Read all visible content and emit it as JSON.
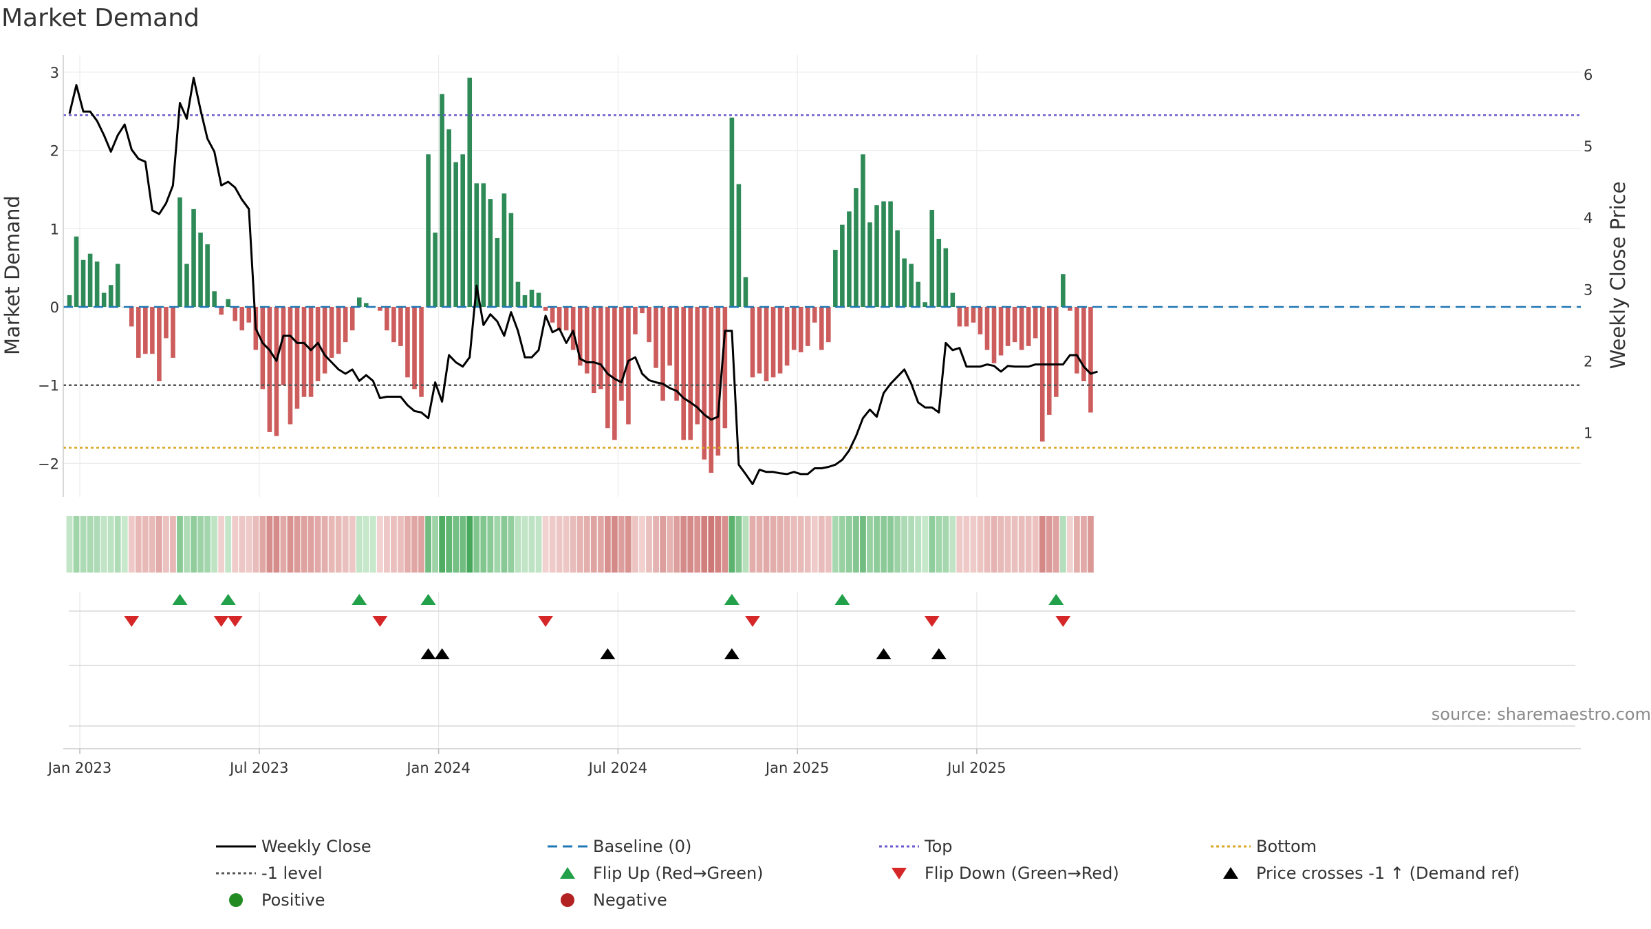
{
  "title": "Market Demand",
  "source_note": "source: sharemaestro.com",
  "colors": {
    "positive": "#2e8b57",
    "negative": "#cd5c5c",
    "price_line": "#000000",
    "baseline": "#1f77b4",
    "top": "#6a5acd",
    "bottom": "#daa520",
    "minus1": "#555555",
    "flip_up": "#22a04a",
    "flip_down": "#d62728",
    "legend_positive": "#228b22",
    "legend_negative": "#b22222"
  },
  "chart_data": {
    "type": "bar",
    "title": "Market Demand",
    "ylabel": "Market Demand",
    "y2label": "Weekly Close Price",
    "ylim": [
      -2.4,
      3.1
    ],
    "y2lim": [
      0.2,
      6.2
    ],
    "yticks": [
      3,
      2,
      1,
      0,
      -1,
      -2
    ],
    "ytick_labels": [
      "3",
      "2",
      "1",
      "0",
      "−1",
      "−2"
    ],
    "y2ticks": [
      6,
      5,
      4,
      3,
      2,
      1
    ],
    "y2tick_labels": [
      "6",
      "5",
      "4",
      "3",
      "2",
      "1"
    ],
    "xtick_labels": [
      "Jan 2023",
      "Jul 2023",
      "Jan 2024",
      "Jul 2024",
      "Jan 2025",
      "Jul 2025"
    ],
    "xtick_weeks": [
      1.5,
      27.5,
      53.5,
      79.5,
      105.5,
      131.5
    ],
    "reference_lines": {
      "top": 2.45,
      "bottom": -1.8,
      "minus_one": -1,
      "baseline": 0
    },
    "demand_weekly": [
      0.15,
      0.9,
      0.6,
      0.68,
      0.58,
      0.18,
      0.28,
      0.55,
      0.0,
      -0.25,
      -0.65,
      -0.6,
      -0.6,
      -0.95,
      -0.4,
      -0.65,
      1.4,
      0.55,
      1.25,
      0.95,
      0.8,
      0.2,
      -0.1,
      0.1,
      -0.18,
      -0.3,
      -0.2,
      -0.55,
      -1.05,
      -1.6,
      -1.65,
      -1.0,
      -1.5,
      -1.3,
      -1.15,
      -1.15,
      -0.95,
      -0.85,
      -0.65,
      -0.6,
      -0.45,
      -0.3,
      0.12,
      0.05,
      0.0,
      -0.05,
      -0.3,
      -0.45,
      -0.5,
      -0.9,
      -1.05,
      -1.15,
      1.95,
      0.95,
      2.72,
      2.27,
      1.85,
      1.95,
      2.93,
      1.58,
      1.58,
      1.38,
      0.88,
      1.45,
      1.2,
      0.32,
      0.15,
      0.22,
      0.18,
      -0.05,
      -0.2,
      -0.3,
      -0.3,
      -0.55,
      -0.75,
      -0.85,
      -1.1,
      -1.05,
      -1.55,
      -1.7,
      -1.2,
      -1.5,
      -0.35,
      -0.08,
      -0.45,
      -0.78,
      -1.2,
      -0.75,
      -1.2,
      -1.7,
      -1.7,
      -1.5,
      -1.95,
      -2.12,
      -1.9,
      -1.55,
      2.42,
      1.57,
      0.38,
      -0.9,
      -0.85,
      -0.95,
      -0.9,
      -0.85,
      -0.75,
      -0.55,
      -0.58,
      -0.5,
      -0.2,
      -0.55,
      -0.45,
      0.73,
      1.05,
      1.22,
      1.52,
      1.95,
      1.08,
      1.3,
      1.35,
      1.35,
      0.98,
      0.62,
      0.55,
      0.32,
      0.06,
      1.24,
      0.87,
      0.75,
      0.18,
      -0.25,
      -0.25,
      -0.2,
      -0.35,
      -0.55,
      -0.72,
      -0.62,
      -0.5,
      -0.45,
      -0.55,
      -0.5,
      -0.4,
      -1.72,
      -1.38,
      -1.15,
      0.42,
      -0.05,
      -0.85,
      -0.95,
      -1.35
    ],
    "close_weekly": [
      5.45,
      5.85,
      5.48,
      5.48,
      5.35,
      5.15,
      4.92,
      5.15,
      5.3,
      4.95,
      4.82,
      4.78,
      4.1,
      4.05,
      4.2,
      4.45,
      5.6,
      5.38,
      5.95,
      5.5,
      5.1,
      4.92,
      4.45,
      4.5,
      4.42,
      4.25,
      4.12,
      2.45,
      2.25,
      2.15,
      2.0,
      2.35,
      2.35,
      2.25,
      2.25,
      2.15,
      2.25,
      2.08,
      1.98,
      1.88,
      1.82,
      1.88,
      1.72,
      1.8,
      1.72,
      1.48,
      1.5,
      1.5,
      1.5,
      1.38,
      1.3,
      1.28,
      1.2,
      1.7,
      1.43,
      2.08,
      1.98,
      1.92,
      2.05,
      3.05,
      2.5,
      2.65,
      2.55,
      2.35,
      2.68,
      2.42,
      2.05,
      2.05,
      2.15,
      2.63,
      2.4,
      2.45,
      2.25,
      2.42,
      2.03,
      1.98,
      1.98,
      1.95,
      1.82,
      1.75,
      1.7,
      2.0,
      2.05,
      1.82,
      1.73,
      1.7,
      1.68,
      1.62,
      1.58,
      1.48,
      1.42,
      1.35,
      1.25,
      1.18,
      1.22,
      2.42,
      2.42,
      0.55,
      0.42,
      0.28,
      0.48,
      0.45,
      0.45,
      0.43,
      0.42,
      0.45,
      0.42,
      0.42,
      0.5,
      0.5,
      0.52,
      0.55,
      0.62,
      0.75,
      0.95,
      1.2,
      1.32,
      1.22,
      1.55,
      1.68,
      1.78,
      1.88,
      1.68,
      1.42,
      1.35,
      1.35,
      1.28,
      2.25,
      2.15,
      2.18,
      1.92,
      1.92,
      1.92,
      1.95,
      1.93,
      1.85,
      1.93,
      1.92,
      1.92,
      1.92,
      1.95,
      1.95,
      1.95,
      1.95,
      1.95,
      2.08,
      2.08,
      1.92,
      1.82,
      1.85
    ],
    "flip_up_weeks": [
      16,
      23,
      42,
      52,
      96,
      112,
      143
    ],
    "flip_down_weeks": [
      9,
      22,
      24,
      45,
      69,
      99,
      125,
      144
    ],
    "price_cross_weeks": [
      52,
      54,
      78,
      96,
      118,
      126
    ]
  },
  "legend": [
    {
      "key": "weekly_close",
      "label": "Weekly Close"
    },
    {
      "key": "baseline",
      "label": "Baseline (0)"
    },
    {
      "key": "top",
      "label": "Top"
    },
    {
      "key": "bottom",
      "label": "Bottom"
    },
    {
      "key": "minus_one",
      "label": "-1 level"
    },
    {
      "key": "flip_up",
      "label": "Flip Up (Red→Green)"
    },
    {
      "key": "flip_down",
      "label": "Flip Down (Green→Red)"
    },
    {
      "key": "price_cross",
      "label": "Price crosses -1 ↑ (Demand ref)"
    },
    {
      "key": "positive",
      "label": "Positive"
    },
    {
      "key": "negative",
      "label": "Negative"
    }
  ]
}
